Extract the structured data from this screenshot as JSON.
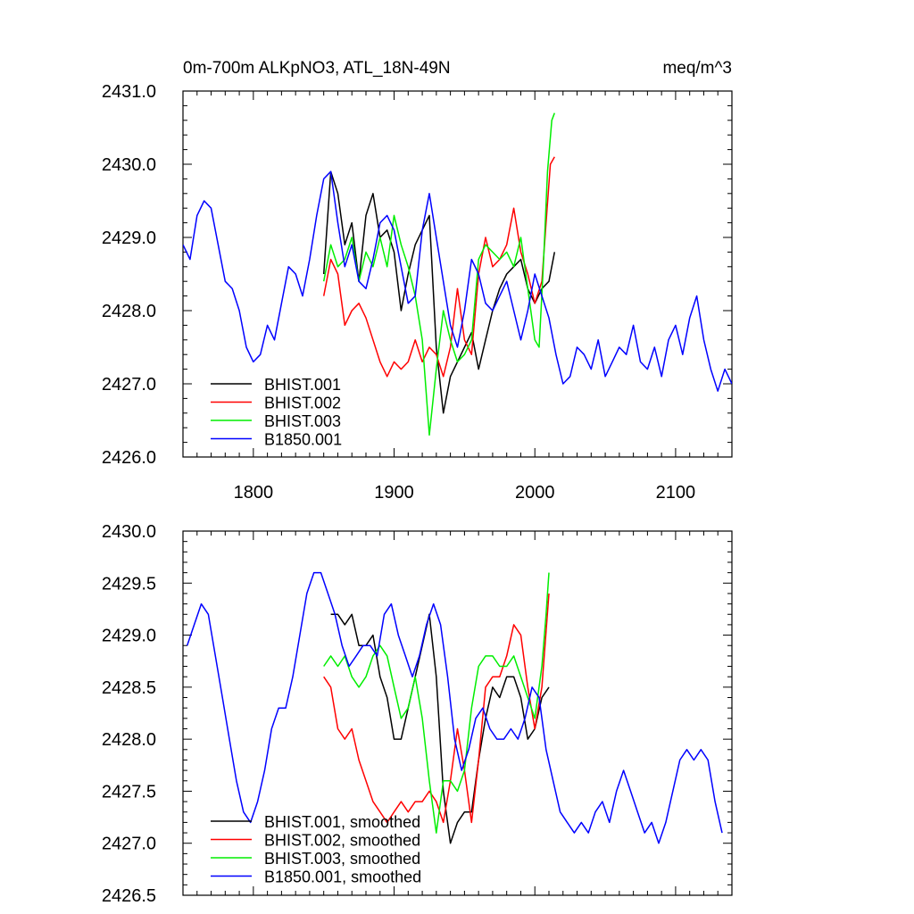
{
  "chart_data": [
    {
      "type": "line",
      "title": "0m-700m ALKpNO3, ATL_18N-49N",
      "units": "meq/m^3",
      "xlim": [
        1750,
        2140
      ],
      "ylim": [
        2426.0,
        2431.0
      ],
      "y_ticks": [
        2426.0,
        2427.0,
        2428.0,
        2429.0,
        2430.0,
        2431.0
      ],
      "y_tick_labels": [
        "2426.0",
        "2427.0",
        "2428.0",
        "2429.0",
        "2430.0",
        "2431.0"
      ],
      "x_ticks": [
        1800,
        1900,
        2000,
        2100
      ],
      "x_tick_labels": [
        "1800",
        "1900",
        "2000",
        "2100"
      ],
      "legend_position": "bottom-left",
      "series": [
        {
          "name": "BHIST.001",
          "color": "#000000",
          "x": [
            1850,
            1855,
            1860,
            1865,
            1870,
            1875,
            1880,
            1885,
            1890,
            1895,
            1900,
            1905,
            1910,
            1915,
            1920,
            1925,
            1930,
            1935,
            1940,
            1945,
            1950,
            1955,
            1960,
            1965,
            1970,
            1975,
            1980,
            1985,
            1990,
            1995,
            2000,
            2005,
            2010,
            2014
          ],
          "y": [
            2428.5,
            2429.9,
            2429.6,
            2428.9,
            2429.2,
            2428.4,
            2429.3,
            2429.6,
            2429.0,
            2429.1,
            2428.8,
            2428.0,
            2428.5,
            2428.9,
            2429.1,
            2429.3,
            2427.5,
            2426.6,
            2427.1,
            2427.3,
            2427.5,
            2427.7,
            2427.2,
            2427.6,
            2428.0,
            2428.3,
            2428.5,
            2428.6,
            2428.7,
            2428.3,
            2428.1,
            2428.3,
            2428.4,
            2428.8
          ]
        },
        {
          "name": "BHIST.002",
          "color": "#ff0000",
          "x": [
            1850,
            1855,
            1860,
            1865,
            1870,
            1875,
            1880,
            1885,
            1890,
            1895,
            1900,
            1905,
            1910,
            1915,
            1920,
            1925,
            1930,
            1935,
            1940,
            1945,
            1950,
            1955,
            1960,
            1965,
            1970,
            1975,
            1980,
            1985,
            1990,
            1995,
            2000,
            2005,
            2008,
            2011,
            2014
          ],
          "y": [
            2428.2,
            2428.7,
            2428.5,
            2427.8,
            2428.0,
            2428.1,
            2427.9,
            2427.6,
            2427.3,
            2427.1,
            2427.3,
            2427.2,
            2427.3,
            2427.6,
            2427.3,
            2427.5,
            2427.4,
            2427.1,
            2427.5,
            2428.3,
            2427.6,
            2427.4,
            2428.5,
            2429.0,
            2428.6,
            2428.7,
            2428.9,
            2429.4,
            2428.8,
            2428.5,
            2428.1,
            2428.4,
            2429.2,
            2430.0,
            2430.1
          ]
        },
        {
          "name": "BHIST.003",
          "color": "#00ee00",
          "x": [
            1850,
            1855,
            1860,
            1865,
            1870,
            1875,
            1880,
            1885,
            1890,
            1895,
            1900,
            1905,
            1910,
            1915,
            1920,
            1925,
            1930,
            1935,
            1940,
            1945,
            1950,
            1955,
            1960,
            1965,
            1970,
            1975,
            1980,
            1985,
            1990,
            1995,
            2000,
            2003,
            2006,
            2009,
            2012,
            2014
          ],
          "y": [
            2428.4,
            2428.9,
            2428.6,
            2428.7,
            2429.0,
            2428.4,
            2428.8,
            2428.6,
            2429.0,
            2428.6,
            2429.3,
            2428.9,
            2428.6,
            2428.2,
            2427.6,
            2426.3,
            2427.2,
            2428.0,
            2427.6,
            2427.3,
            2427.4,
            2427.6,
            2428.7,
            2428.9,
            2428.8,
            2428.7,
            2428.8,
            2428.6,
            2429.0,
            2428.3,
            2427.6,
            2427.5,
            2428.6,
            2429.9,
            2430.6,
            2430.7
          ]
        },
        {
          "name": "B1850.001",
          "color": "#0000ff",
          "x": [
            1750,
            1755,
            1760,
            1765,
            1770,
            1775,
            1780,
            1785,
            1790,
            1795,
            1800,
            1805,
            1810,
            1815,
            1820,
            1825,
            1830,
            1835,
            1840,
            1845,
            1850,
            1855,
            1860,
            1865,
            1870,
            1875,
            1880,
            1885,
            1890,
            1895,
            1900,
            1905,
            1910,
            1915,
            1920,
            1925,
            1930,
            1935,
            1940,
            1945,
            1950,
            1955,
            1960,
            1965,
            1970,
            1975,
            1980,
            1985,
            1990,
            1995,
            2000,
            2005,
            2010,
            2015,
            2020,
            2025,
            2030,
            2035,
            2040,
            2045,
            2050,
            2055,
            2060,
            2065,
            2070,
            2075,
            2080,
            2085,
            2090,
            2095,
            2100,
            2105,
            2110,
            2115,
            2120,
            2125,
            2130,
            2135,
            2140
          ],
          "y": [
            2428.9,
            2428.7,
            2429.3,
            2429.5,
            2429.4,
            2428.9,
            2428.4,
            2428.3,
            2428.0,
            2427.5,
            2427.3,
            2427.4,
            2427.8,
            2427.6,
            2428.1,
            2428.6,
            2428.5,
            2428.2,
            2428.7,
            2429.3,
            2429.8,
            2429.9,
            2429.2,
            2428.6,
            2428.9,
            2428.4,
            2428.3,
            2428.7,
            2429.2,
            2429.3,
            2429.1,
            2428.6,
            2428.1,
            2428.2,
            2429.1,
            2429.6,
            2429.0,
            2428.4,
            2427.8,
            2427.5,
            2428.0,
            2428.7,
            2428.5,
            2428.1,
            2428.0,
            2428.2,
            2428.4,
            2428.0,
            2427.6,
            2428.0,
            2428.5,
            2428.2,
            2427.9,
            2427.4,
            2427.0,
            2427.1,
            2427.5,
            2427.4,
            2427.2,
            2427.6,
            2427.1,
            2427.3,
            2427.5,
            2427.4,
            2427.8,
            2427.3,
            2427.2,
            2427.5,
            2427.1,
            2427.6,
            2427.8,
            2427.4,
            2427.9,
            2428.2,
            2427.6,
            2427.2,
            2426.9,
            2427.2,
            2427.0
          ]
        }
      ]
    },
    {
      "type": "line",
      "xlim": [
        1750,
        2140
      ],
      "ylim": [
        2426.5,
        2430.0
      ],
      "y_ticks": [
        2426.5,
        2427.0,
        2427.5,
        2428.0,
        2428.5,
        2429.0,
        2429.5,
        2430.0
      ],
      "y_tick_labels": [
        "2426.5",
        "2427.0",
        "2427.5",
        "2428.0",
        "2428.5",
        "2429.0",
        "2429.5",
        "2430.0"
      ],
      "x_ticks": [
        1800,
        1900,
        2000,
        2100
      ],
      "legend_position": "bottom-left",
      "series": [
        {
          "name": "BHIST.001, smoothed",
          "color": "#000000",
          "x": [
            1855,
            1860,
            1865,
            1870,
            1875,
            1880,
            1885,
            1890,
            1895,
            1900,
            1905,
            1910,
            1915,
            1920,
            1925,
            1930,
            1935,
            1940,
            1945,
            1950,
            1955,
            1960,
            1965,
            1970,
            1975,
            1980,
            1985,
            1990,
            1995,
            2000,
            2005,
            2010
          ],
          "y": [
            2429.2,
            2429.2,
            2429.1,
            2429.2,
            2428.9,
            2428.9,
            2429.0,
            2428.6,
            2428.4,
            2428.0,
            2428.0,
            2428.3,
            2428.6,
            2428.9,
            2429.2,
            2428.6,
            2427.5,
            2427.0,
            2427.2,
            2427.3,
            2427.3,
            2427.8,
            2428.2,
            2428.5,
            2428.4,
            2428.6,
            2428.6,
            2428.4,
            2428.0,
            2428.1,
            2428.4,
            2428.5
          ]
        },
        {
          "name": "BHIST.002, smoothed",
          "color": "#ff0000",
          "x": [
            1850,
            1855,
            1860,
            1865,
            1870,
            1875,
            1880,
            1885,
            1890,
            1895,
            1900,
            1905,
            1910,
            1915,
            1920,
            1925,
            1930,
            1935,
            1940,
            1945,
            1950,
            1955,
            1960,
            1965,
            1970,
            1975,
            1980,
            1985,
            1990,
            1995,
            2000,
            2005,
            2010
          ],
          "y": [
            2428.6,
            2428.5,
            2428.1,
            2428.0,
            2428.1,
            2427.8,
            2427.6,
            2427.4,
            2427.3,
            2427.2,
            2427.3,
            2427.4,
            2427.3,
            2427.4,
            2427.4,
            2427.5,
            2427.4,
            2427.2,
            2427.6,
            2428.1,
            2427.7,
            2427.2,
            2427.8,
            2428.5,
            2428.6,
            2428.6,
            2428.8,
            2429.1,
            2429.0,
            2428.5,
            2428.1,
            2428.5,
            2429.4
          ]
        },
        {
          "name": "BHIST.003, smoothed",
          "color": "#00ee00",
          "x": [
            1850,
            1855,
            1860,
            1865,
            1870,
            1875,
            1880,
            1885,
            1890,
            1895,
            1900,
            1905,
            1910,
            1915,
            1920,
            1925,
            1930,
            1935,
            1940,
            1945,
            1950,
            1955,
            1960,
            1965,
            1970,
            1975,
            1980,
            1985,
            1990,
            1995,
            2000,
            2005,
            2008,
            2010
          ],
          "y": [
            2428.7,
            2428.8,
            2428.7,
            2428.8,
            2428.6,
            2428.5,
            2428.6,
            2428.8,
            2428.9,
            2428.8,
            2428.5,
            2428.2,
            2428.3,
            2428.6,
            2428.2,
            2427.6,
            2427.1,
            2427.6,
            2427.6,
            2427.5,
            2427.7,
            2428.3,
            2428.7,
            2428.8,
            2428.8,
            2428.7,
            2428.7,
            2428.8,
            2428.6,
            2428.4,
            2428.2,
            2428.7,
            2429.2,
            2429.6
          ]
        },
        {
          "name": "B1850.001, smoothed",
          "color": "#0000ff",
          "x": [
            1753,
            1758,
            1763,
            1768,
            1773,
            1778,
            1783,
            1788,
            1793,
            1798,
            1803,
            1808,
            1813,
            1818,
            1823,
            1828,
            1833,
            1838,
            1843,
            1848,
            1853,
            1858,
            1863,
            1868,
            1873,
            1878,
            1883,
            1888,
            1893,
            1898,
            1903,
            1908,
            1913,
            1918,
            1923,
            1928,
            1933,
            1938,
            1943,
            1948,
            1953,
            1958,
            1963,
            1968,
            1973,
            1978,
            1983,
            1988,
            1993,
            1998,
            2003,
            2008,
            2013,
            2018,
            2023,
            2028,
            2033,
            2038,
            2043,
            2048,
            2053,
            2058,
            2063,
            2068,
            2073,
            2078,
            2083,
            2088,
            2093,
            2098,
            2103,
            2108,
            2113,
            2118,
            2123,
            2128,
            2133
          ],
          "y": [
            2428.9,
            2429.1,
            2429.3,
            2429.2,
            2428.8,
            2428.4,
            2428.0,
            2427.6,
            2427.3,
            2427.2,
            2427.4,
            2427.7,
            2428.1,
            2428.3,
            2428.3,
            2428.6,
            2429.0,
            2429.4,
            2429.6,
            2429.6,
            2429.4,
            2429.2,
            2428.9,
            2428.7,
            2428.8,
            2428.9,
            2428.9,
            2428.8,
            2429.2,
            2429.3,
            2429.0,
            2428.8,
            2428.6,
            2428.8,
            2429.1,
            2429.3,
            2429.1,
            2428.6,
            2428.0,
            2427.7,
            2427.9,
            2428.2,
            2428.3,
            2428.1,
            2428.0,
            2428.0,
            2428.1,
            2428.0,
            2428.2,
            2428.5,
            2428.4,
            2427.9,
            2427.6,
            2427.3,
            2427.2,
            2427.1,
            2427.2,
            2427.1,
            2427.3,
            2427.4,
            2427.2,
            2427.5,
            2427.7,
            2427.5,
            2427.3,
            2427.1,
            2427.2,
            2427.0,
            2427.2,
            2427.5,
            2427.8,
            2427.9,
            2427.8,
            2427.9,
            2427.8,
            2427.4,
            2427.1
          ]
        }
      ]
    }
  ]
}
